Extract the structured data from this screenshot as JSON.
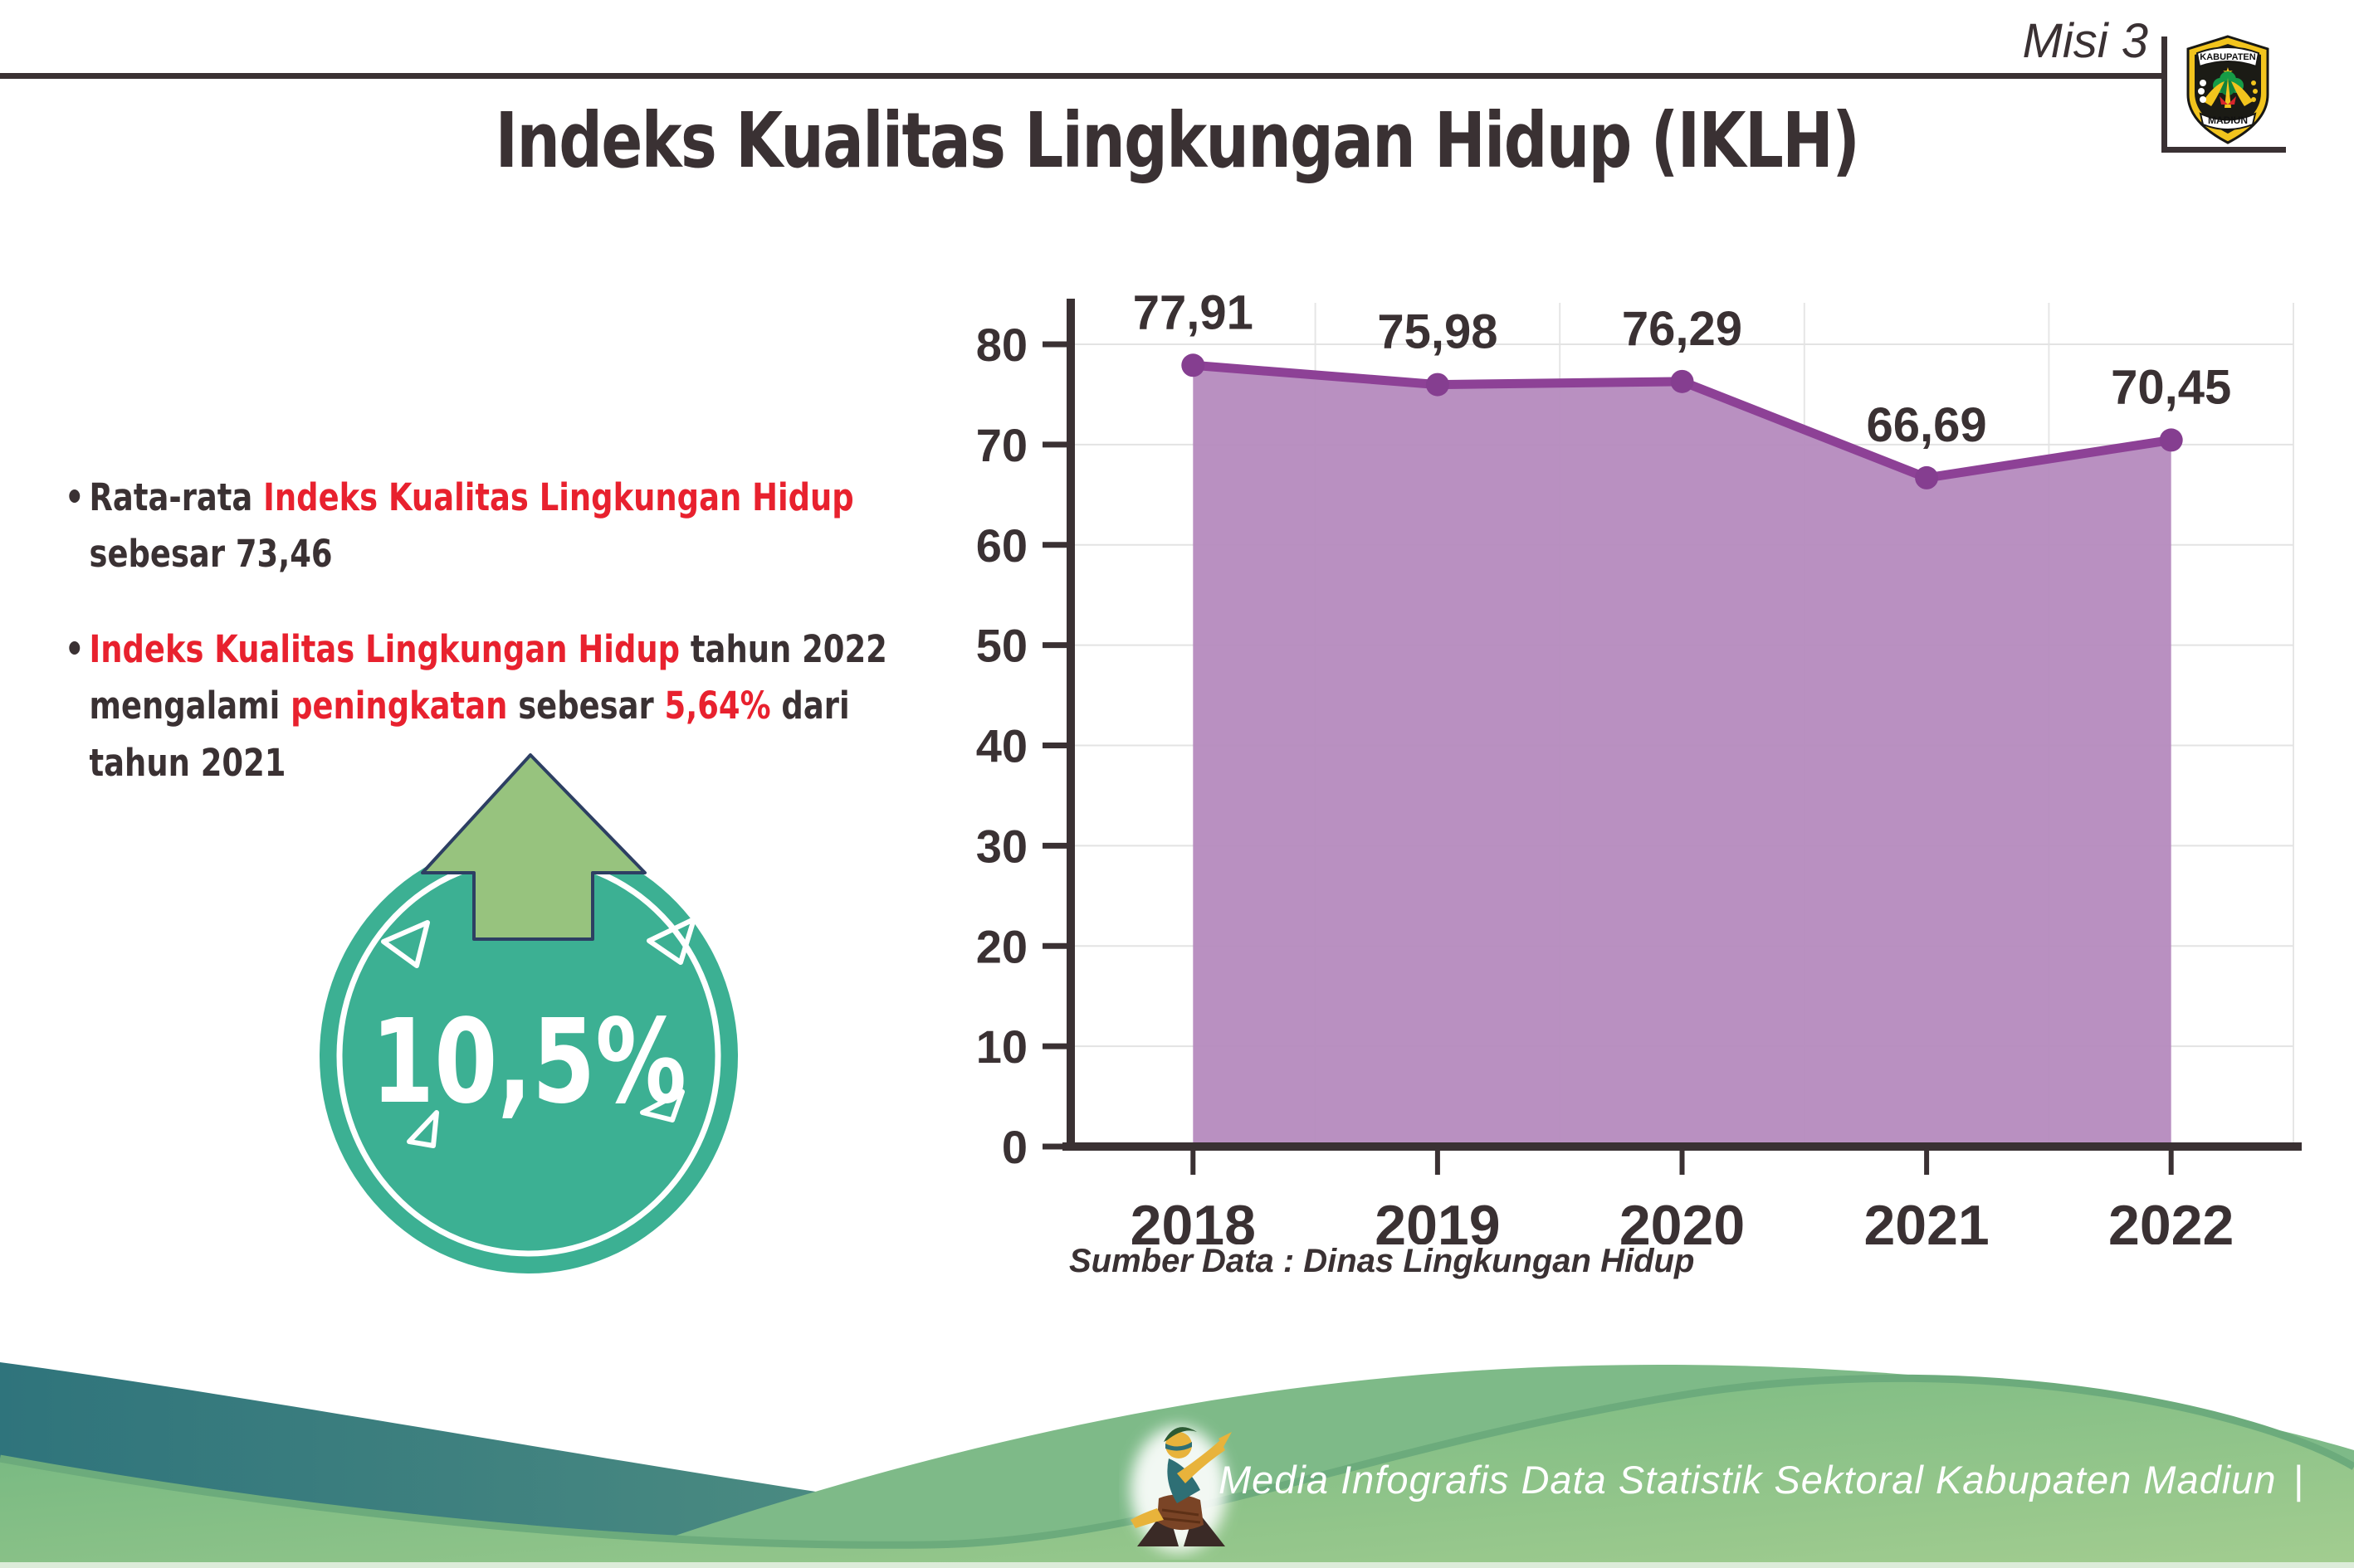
{
  "header": {
    "misi": "Misi 3",
    "logo": {
      "top_text": "KABUPATEN",
      "bottom_text": "MADIUN"
    }
  },
  "title": "Indeks Kualitas Lingkungan Hidup (IKLH)",
  "bullets": [
    {
      "dot": "•",
      "segments": [
        {
          "text": "Rata-rata ",
          "style": "dark"
        },
        {
          "text": "Indeks Kualitas Lingkungan Hidup",
          "style": "red"
        },
        {
          "text": "\nsebesar 73,46",
          "style": "dark"
        }
      ]
    },
    {
      "dot": "•",
      "segments": [
        {
          "text": "Indeks Kualitas Lingkungan Hidup",
          "style": "red"
        },
        {
          "text": " tahun 2022\nmengalami ",
          "style": "dark"
        },
        {
          "text": "peningkatan",
          "style": "red"
        },
        {
          "text": " sebesar ",
          "style": "dark"
        },
        {
          "text": "5,64%",
          "style": "red"
        },
        {
          "text": " dari\ntahun 2021",
          "style": "dark"
        }
      ]
    }
  ],
  "badge": {
    "value": "10,5%",
    "circle_color": "#3cb093",
    "arrow_color": "#97c37e"
  },
  "chart_data": {
    "type": "area",
    "categories": [
      "2018",
      "2019",
      "2020",
      "2021",
      "2022"
    ],
    "values": [
      77.91,
      75.98,
      76.29,
      66.69,
      70.45
    ],
    "labels": [
      "77,91",
      "75,98",
      "76,29",
      "66,69",
      "70,45"
    ],
    "title": "",
    "xlabel": "",
    "ylabel": "",
    "ylim": [
      0,
      80
    ],
    "ytick_step": 10,
    "grid": true,
    "legend": "none",
    "line_color": "#8d4196",
    "marker_color": "#853e90",
    "fill_color": "#b58abe",
    "axis_color": "#3a3133",
    "label_color": "#3a3133",
    "source_note": "Sumber Data : Dinas Lingkungan Hidup"
  },
  "footer": {
    "text": "Media Infografis Data Statistik Sektoral Kabupaten Madiun",
    "divider": "|"
  }
}
